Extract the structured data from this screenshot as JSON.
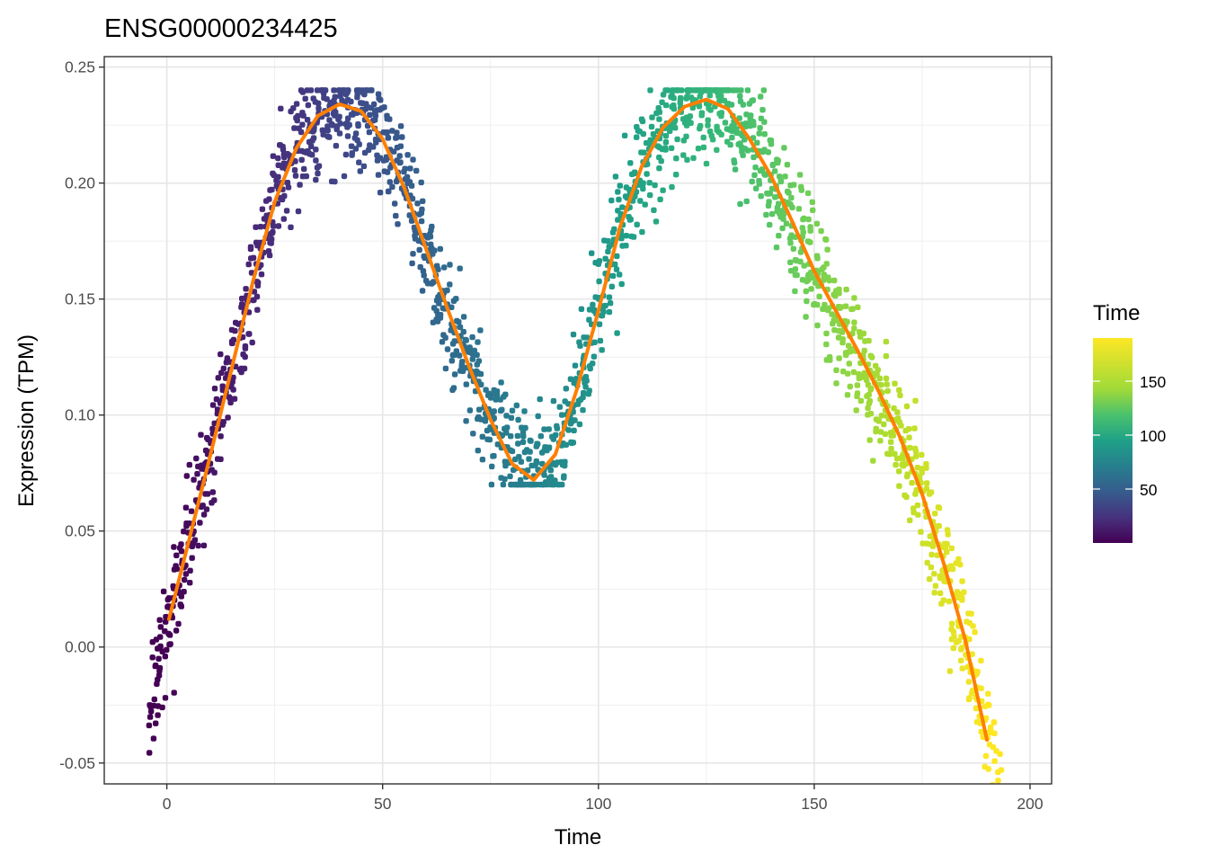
{
  "chart_data": {
    "type": "scatter",
    "title": "ENSG00000234425",
    "xlabel": "Time",
    "ylabel": "Expression (TPM)",
    "xlim": [
      -14.5,
      205
    ],
    "ylim": [
      -0.059,
      0.2545
    ],
    "x_ticks": [
      0,
      50,
      100,
      150,
      200
    ],
    "x_tick_labels": [
      "0",
      "50",
      "100",
      "150",
      "200"
    ],
    "y_ticks": [
      -0.05,
      0.0,
      0.05,
      0.1,
      0.15,
      0.2,
      0.25
    ],
    "y_tick_labels": [
      "-0.05",
      "0.00",
      "0.05",
      "0.10",
      "0.15",
      "0.20",
      "0.25"
    ],
    "grid": true,
    "scatter": {
      "n_points": 1900,
      "x_range": [
        -4,
        196
      ],
      "y_clip": [
        0.07,
        0.24
      ],
      "color_by": "Time",
      "colormap": "viridis"
    },
    "smooth_line": {
      "color": "#ff7f00",
      "points": [
        [
          0.5,
          0.012
        ],
        [
          5,
          0.045
        ],
        [
          10,
          0.082
        ],
        [
          15,
          0.12
        ],
        [
          20,
          0.158
        ],
        [
          25,
          0.192
        ],
        [
          30,
          0.215
        ],
        [
          35,
          0.229
        ],
        [
          40,
          0.234
        ],
        [
          45,
          0.231
        ],
        [
          50,
          0.219
        ],
        [
          55,
          0.198
        ],
        [
          60,
          0.172
        ],
        [
          65,
          0.146
        ],
        [
          70,
          0.121
        ],
        [
          75,
          0.098
        ],
        [
          80,
          0.079
        ],
        [
          85,
          0.072
        ],
        [
          90,
          0.083
        ],
        [
          95,
          0.111
        ],
        [
          100,
          0.145
        ],
        [
          105,
          0.181
        ],
        [
          110,
          0.207
        ],
        [
          115,
          0.224
        ],
        [
          120,
          0.233
        ],
        [
          125,
          0.236
        ],
        [
          130,
          0.232
        ],
        [
          135,
          0.219
        ],
        [
          140,
          0.203
        ],
        [
          145,
          0.183
        ],
        [
          150,
          0.162
        ],
        [
          155,
          0.145
        ],
        [
          160,
          0.128
        ],
        [
          165,
          0.11
        ],
        [
          170,
          0.09
        ],
        [
          175,
          0.066
        ],
        [
          180,
          0.036
        ],
        [
          185,
          0.003
        ],
        [
          190,
          -0.04
        ]
      ]
    },
    "legend": {
      "title": "Time",
      "placement": "right",
      "range": [
        0,
        190
      ],
      "ticks": [
        50,
        100,
        150
      ],
      "tick_labels": [
        "50",
        "100",
        "150"
      ]
    }
  }
}
